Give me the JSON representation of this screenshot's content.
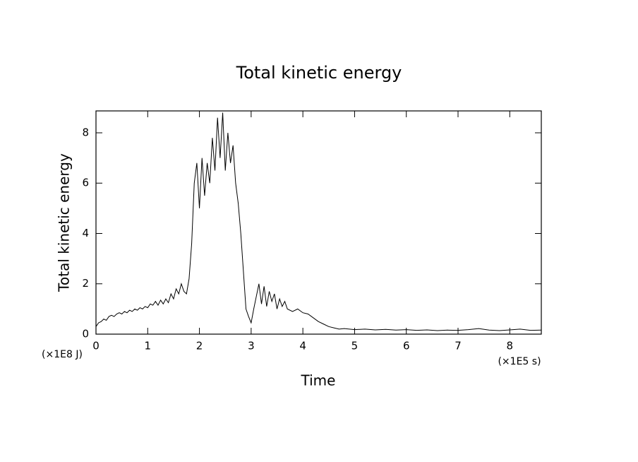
{
  "chart_data": {
    "type": "line",
    "title": "Total kinetic energy",
    "x_label": "Time",
    "y_label": "Total kinetic energy",
    "x_unit_label": "(×1E5 s)",
    "y_unit_label": "(×1E8 J)",
    "xlim": [
      0,
      8.61
    ],
    "ylim": [
      0,
      8.87
    ],
    "xticks": [
      0,
      1,
      2,
      3,
      4,
      5,
      6,
      7,
      8
    ],
    "yticks": [
      0,
      2,
      4,
      6,
      8
    ],
    "grid": false,
    "series": [
      {
        "name": "Total kinetic energy",
        "color": "#000000",
        "x": [
          0,
          0.05,
          0.1,
          0.15,
          0.2,
          0.25,
          0.3,
          0.35,
          0.4,
          0.45,
          0.5,
          0.55,
          0.6,
          0.65,
          0.7,
          0.75,
          0.8,
          0.85,
          0.9,
          0.95,
          1.0,
          1.05,
          1.1,
          1.15,
          1.2,
          1.25,
          1.3,
          1.35,
          1.4,
          1.45,
          1.5,
          1.55,
          1.6,
          1.65,
          1.7,
          1.75,
          1.8,
          1.85,
          1.9,
          1.95,
          2.0,
          2.05,
          2.1,
          2.15,
          2.2,
          2.25,
          2.3,
          2.35,
          2.4,
          2.45,
          2.5,
          2.55,
          2.6,
          2.65,
          2.7,
          2.75,
          2.8,
          2.85,
          2.9,
          2.95,
          3.0,
          3.05,
          3.1,
          3.15,
          3.2,
          3.25,
          3.3,
          3.35,
          3.4,
          3.45,
          3.5,
          3.55,
          3.6,
          3.65,
          3.7,
          3.8,
          3.9,
          4.0,
          4.1,
          4.2,
          4.3,
          4.4,
          4.5,
          4.6,
          4.7,
          4.8,
          5.0,
          5.2,
          5.4,
          5.6,
          5.8,
          6.0,
          6.2,
          6.4,
          6.6,
          6.8,
          7.0,
          7.2,
          7.4,
          7.6,
          7.8,
          8.0,
          8.2,
          8.4,
          8.61
        ],
        "values": [
          0.3,
          0.45,
          0.5,
          0.6,
          0.55,
          0.7,
          0.75,
          0.7,
          0.8,
          0.85,
          0.8,
          0.9,
          0.85,
          0.95,
          0.9,
          1.0,
          0.95,
          1.05,
          1.0,
          1.1,
          1.05,
          1.2,
          1.15,
          1.3,
          1.15,
          1.35,
          1.2,
          1.4,
          1.25,
          1.6,
          1.4,
          1.8,
          1.6,
          2.0,
          1.7,
          1.6,
          2.2,
          3.6,
          6.0,
          6.8,
          5.0,
          7.0,
          5.5,
          6.8,
          6.0,
          7.8,
          6.5,
          8.6,
          7.0,
          8.8,
          6.5,
          8.0,
          6.8,
          7.5,
          6.0,
          5.2,
          4.0,
          2.5,
          1.0,
          0.7,
          0.45,
          1.0,
          1.5,
          2.0,
          1.2,
          1.9,
          1.1,
          1.7,
          1.3,
          1.6,
          1.0,
          1.4,
          1.1,
          1.3,
          1.0,
          0.9,
          1.0,
          0.85,
          0.8,
          0.65,
          0.5,
          0.4,
          0.3,
          0.25,
          0.2,
          0.22,
          0.18,
          0.2,
          0.17,
          0.19,
          0.16,
          0.18,
          0.15,
          0.17,
          0.14,
          0.16,
          0.15,
          0.18,
          0.22,
          0.16,
          0.14,
          0.17,
          0.2,
          0.15,
          0.16
        ]
      }
    ]
  }
}
